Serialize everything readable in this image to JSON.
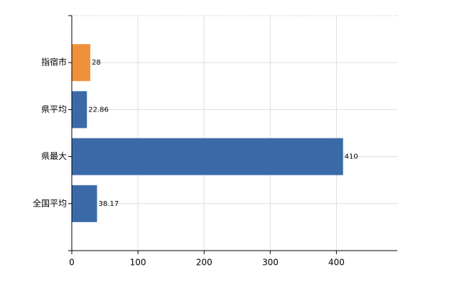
{
  "chart_data": {
    "type": "hbar",
    "categories": [
      "指宿市",
      "県平均",
      "県最大",
      "全国平均"
    ],
    "values": [
      28,
      22.86,
      410,
      38.17
    ],
    "colors": [
      "#f0913a",
      "#3a6aa8",
      "#3a6aa8",
      "#3a6aa8"
    ],
    "xlim": [
      0,
      492
    ],
    "xticks": [
      0,
      100,
      200,
      300,
      400
    ],
    "grid": true
  }
}
